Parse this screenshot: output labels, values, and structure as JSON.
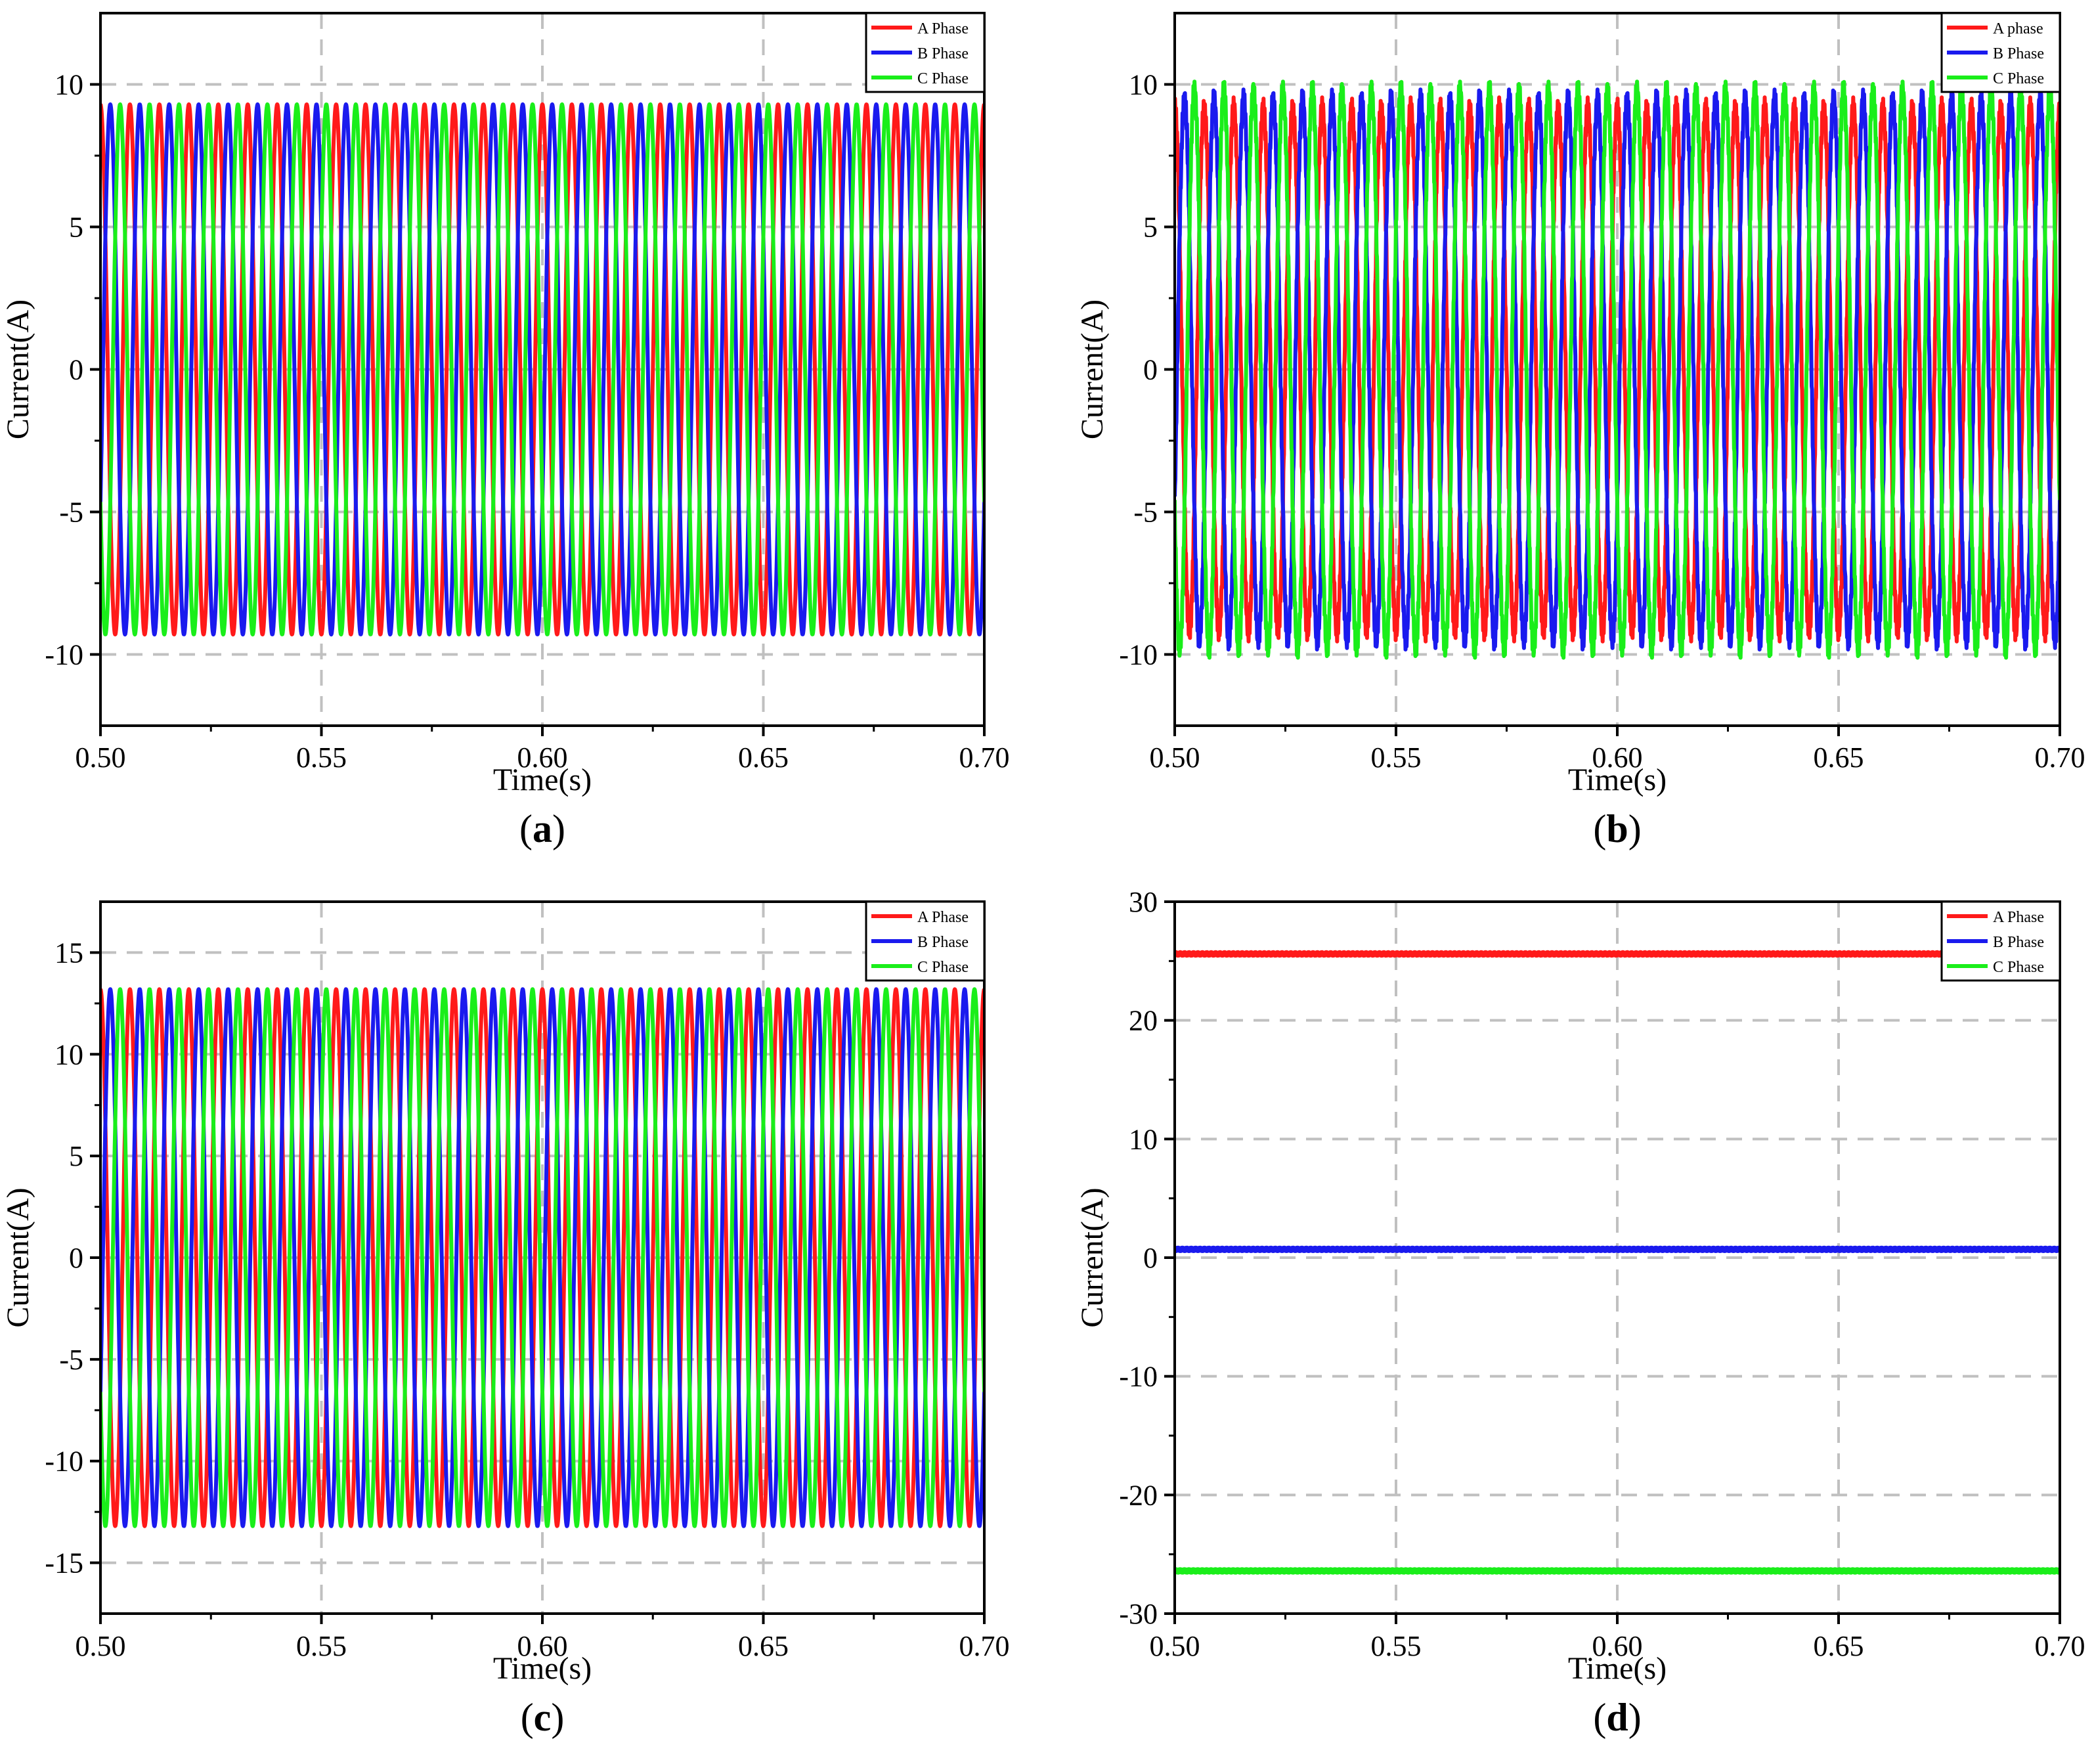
{
  "figure": {
    "description_labels": [
      "(a)",
      "(b)",
      "(c)",
      "(d)"
    ]
  },
  "colors": {
    "phase_a": "#ff1a1a",
    "phase_b": "#1a1aee",
    "phase_c": "#1aee1a",
    "grid": "#c0c0c0"
  },
  "chart_data": [
    {
      "type": "line",
      "panel_label": "(a)",
      "xlabel": "Time(s)",
      "ylabel": "Current(A)",
      "xlim": [
        0.5,
        0.7
      ],
      "ylim": [
        -12.5,
        12.5
      ],
      "xticks": [
        0.5,
        0.55,
        0.6,
        0.65,
        0.7
      ],
      "xtick_labels": [
        "0.50",
        "0.55",
        "0.60",
        "0.65",
        "0.70"
      ],
      "yticks": [
        -10,
        -5,
        0,
        5,
        10
      ],
      "ytick_labels": [
        "-10",
        "-5",
        "0",
        "5",
        "10"
      ],
      "grid": true,
      "legend": "top-right",
      "series": [
        {
          "name": "A Phase",
          "color": "#ff1a1a",
          "kind": "sine",
          "amplitude": 9.3,
          "frequency_hz": 150,
          "phase_deg": 90,
          "ripple": 0
        },
        {
          "name": "B Phase",
          "color": "#1a1aee",
          "kind": "sine",
          "amplitude": 9.3,
          "frequency_hz": 150,
          "phase_deg": -30,
          "ripple": 0
        },
        {
          "name": "C Phase",
          "color": "#1aee1a",
          "kind": "sine",
          "amplitude": 9.3,
          "frequency_hz": 150,
          "phase_deg": 210,
          "ripple": 0
        }
      ]
    },
    {
      "type": "line",
      "panel_label": "(b)",
      "xlabel": "Time(s)",
      "ylabel": "Current(A)",
      "xlim": [
        0.5,
        0.7
      ],
      "ylim": [
        -12.5,
        12.5
      ],
      "xticks": [
        0.5,
        0.55,
        0.6,
        0.65,
        0.7
      ],
      "xtick_labels": [
        "0.50",
        "0.55",
        "0.60",
        "0.65",
        "0.70"
      ],
      "yticks": [
        -10,
        -5,
        0,
        5,
        10
      ],
      "ytick_labels": [
        "-10",
        "-5",
        "0",
        "5",
        "10"
      ],
      "grid": true,
      "legend": "top-right",
      "series": [
        {
          "name": "A phase",
          "color": "#ff1a1a",
          "kind": "sine",
          "amplitude": 9.2,
          "frequency_hz": 150,
          "phase_deg": 90,
          "ripple": 0.35
        },
        {
          "name": "B Phase",
          "color": "#1a1aee",
          "kind": "sine",
          "amplitude": 9.5,
          "frequency_hz": 150,
          "phase_deg": -30,
          "ripple": 0.35
        },
        {
          "name": "C Phase",
          "color": "#1aee1a",
          "kind": "sine",
          "amplitude": 9.8,
          "frequency_hz": 150,
          "phase_deg": 210,
          "ripple": 0.35
        }
      ]
    },
    {
      "type": "line",
      "panel_label": "(c)",
      "xlabel": "Time(s)",
      "ylabel": "Current(A)",
      "xlim": [
        0.5,
        0.7
      ],
      "ylim": [
        -17.5,
        17.5
      ],
      "xticks": [
        0.5,
        0.55,
        0.6,
        0.65,
        0.7
      ],
      "xtick_labels": [
        "0.50",
        "0.55",
        "0.60",
        "0.65",
        "0.70"
      ],
      "yticks": [
        -15,
        -10,
        -5,
        0,
        5,
        10,
        15
      ],
      "ytick_labels": [
        "-15",
        "-10",
        "-5",
        "0",
        "5",
        "10",
        "15"
      ],
      "grid": true,
      "legend": "top-right",
      "series": [
        {
          "name": "A Phase",
          "color": "#ff1a1a",
          "kind": "sine",
          "amplitude": 13.2,
          "frequency_hz": 150,
          "phase_deg": 90,
          "ripple": 0
        },
        {
          "name": "B Phase",
          "color": "#1a1aee",
          "kind": "sine",
          "amplitude": 13.2,
          "frequency_hz": 150,
          "phase_deg": -30,
          "ripple": 0
        },
        {
          "name": "C Phase",
          "color": "#1aee1a",
          "kind": "sine",
          "amplitude": 13.2,
          "frequency_hz": 150,
          "phase_deg": 210,
          "ripple": 0
        }
      ]
    },
    {
      "type": "line",
      "panel_label": "(d)",
      "xlabel": "Time(s)",
      "ylabel": "Current(A)",
      "xlim": [
        0.5,
        0.7
      ],
      "ylim": [
        -30,
        30
      ],
      "xticks": [
        0.5,
        0.55,
        0.6,
        0.65,
        0.7
      ],
      "xtick_labels": [
        "0.50",
        "0.55",
        "0.60",
        "0.65",
        "0.70"
      ],
      "yticks": [
        -30,
        -20,
        -10,
        0,
        10,
        20,
        30
      ],
      "ytick_labels": [
        "-30",
        "-20",
        "-10",
        "0",
        "10",
        "20",
        "30"
      ],
      "grid": true,
      "legend": "top-right",
      "series": [
        {
          "name": "A Phase",
          "color": "#ff1a1a",
          "kind": "dc",
          "value": 25.6,
          "ripple": 0.15
        },
        {
          "name": "B Phase",
          "color": "#1a1aee",
          "kind": "dc",
          "value": 0.7,
          "ripple": 0.15
        },
        {
          "name": "C Phase",
          "color": "#1aee1a",
          "kind": "dc",
          "value": -26.4,
          "ripple": 0.15
        }
      ]
    }
  ]
}
